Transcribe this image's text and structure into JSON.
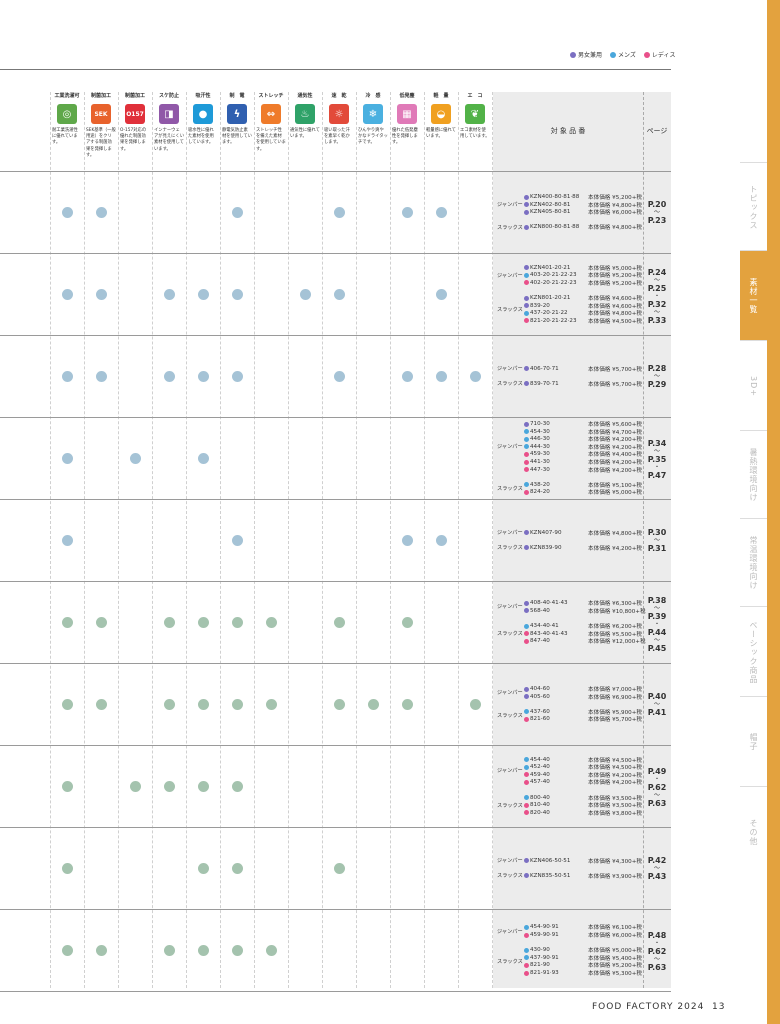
{
  "legend": [
    {
      "label": "男女兼用",
      "color": "#7b6fc2"
    },
    {
      "label": "メンズ",
      "color": "#4aa7dc"
    },
    {
      "label": "レディス",
      "color": "#e9508a"
    }
  ],
  "headers": {
    "target": "対 象 品 番",
    "page": "ページ"
  },
  "features": [
    {
      "title": "工業洗濯可",
      "icon": "drop-shield-icon",
      "color": "#5fa84a",
      "glyph": "◎",
      "desc": "耐工業洗濯性に優れています。"
    },
    {
      "title": "制菌加工",
      "icon": "sek-mark-icon",
      "color": "#e8622c",
      "glyph": "SEK",
      "desc": "SEK基準（一般用途）をクリアする制菌効果を発揮します。"
    },
    {
      "title": "制菌加工",
      "icon": "o157-icon",
      "color": "#e0303a",
      "glyph": "O157",
      "desc": "O-157対応の優れた制菌効果を発揮します。"
    },
    {
      "title": "スケ防止",
      "icon": "see-through-icon",
      "color": "#9058a8",
      "glyph": "◨",
      "desc": "インナーウェアが見えにくい素材を使用しています。"
    },
    {
      "title": "吸汗性",
      "icon": "water-drop-icon",
      "color": "#1e9ad8",
      "glyph": "●",
      "desc": "吸水性に優れた素材を使用しています。"
    },
    {
      "title": "制　電",
      "icon": "static-icon",
      "color": "#3060b0",
      "glyph": "ϟ",
      "desc": "静電気防止素材を使用しています。"
    },
    {
      "title": "ストレッチ",
      "icon": "stretch-icon",
      "color": "#ef7b2a",
      "glyph": "⇔",
      "desc": "ストレッチ性を備えた素材を使用しています。"
    },
    {
      "title": "通気性",
      "icon": "vent-jacket-icon",
      "color": "#2fa268",
      "glyph": "♨",
      "desc": "通気性に優れています。"
    },
    {
      "title": "速　乾",
      "icon": "quick-dry-icon",
      "color": "#e24a3a",
      "glyph": "☼",
      "desc": "吸い取った汗を素早く乾かします。"
    },
    {
      "title": "冷　感",
      "icon": "cool-icon",
      "color": "#4ab0e0",
      "glyph": "❄",
      "desc": "ひんやり爽やかなドライタッチです。"
    },
    {
      "title": "低発塵",
      "icon": "low-lint-icon",
      "color": "#e07ab8",
      "glyph": "▦",
      "desc": "優れた低発塵性を発揮します。"
    },
    {
      "title": "軽　量",
      "icon": "light-weight-icon",
      "color": "#f0a020",
      "glyph": "◒",
      "desc": "軽量感に優れています。"
    },
    {
      "title": "エ　コ",
      "icon": "eco-leaf-icon",
      "color": "#52b248",
      "glyph": "❦",
      "desc": "エコ素材を使用しています。"
    }
  ],
  "rows": [
    {
      "dots": [
        1,
        1,
        0,
        0,
        0,
        1,
        0,
        0,
        1,
        0,
        1,
        1,
        0
      ],
      "dotColor": "blue",
      "pages": [
        "P.20",
        "〜",
        "P.23"
      ],
      "groups": [
        {
          "cat": "ジャンパー",
          "items": [
            {
              "code": "KZN400-80·81·88",
              "price": "本体価格 ¥5,200+税",
              "color": "#7b6fc2"
            },
            {
              "code": "KZN402-80·81",
              "price": "本体価格 ¥4,800+税",
              "color": "#7b6fc2"
            },
            {
              "code": "KZN405-80·81",
              "price": "本体価格 ¥6,000+税",
              "color": "#7b6fc2"
            }
          ]
        },
        {
          "cat": "スラックス",
          "items": [
            {
              "code": "KZN800-80·81·88",
              "price": "本体価格 ¥4,800+税",
              "color": "#7b6fc2"
            }
          ]
        }
      ]
    },
    {
      "dots": [
        1,
        1,
        0,
        1,
        1,
        1,
        0,
        1,
        1,
        0,
        0,
        1,
        0
      ],
      "dotColor": "blue",
      "pages": [
        "P.24",
        "〜",
        "P.25",
        "・",
        "P.32",
        "〜",
        "P.33"
      ],
      "groups": [
        {
          "cat": "ジャンパー",
          "items": [
            {
              "code": "KZN401-20·21",
              "price": "本体価格 ¥5,000+税",
              "color": "#7b6fc2"
            },
            {
              "code": "403-20·21·22·23",
              "price": "本体価格 ¥5,200+税",
              "color": "#4aa7dc"
            },
            {
              "code": "402-20·21·22·23",
              "price": "本体価格 ¥5,200+税",
              "color": "#e9508a"
            }
          ]
        },
        {
          "cat": "スラックス",
          "items": [
            {
              "code": "KZN801-20·21",
              "price": "本体価格 ¥4,600+税",
              "color": "#7b6fc2"
            },
            {
              "code": "839-20",
              "price": "本体価格 ¥4,600+税",
              "color": "#7b6fc2"
            },
            {
              "code": "437-20·21·22",
              "price": "本体価格 ¥4,800+税",
              "color": "#4aa7dc"
            },
            {
              "code": "821-20·21·22·23",
              "price": "本体価格 ¥4,500+税",
              "color": "#e9508a"
            }
          ]
        }
      ]
    },
    {
      "dots": [
        1,
        1,
        0,
        1,
        1,
        1,
        0,
        0,
        1,
        0,
        1,
        1,
        1
      ],
      "dotColor": "blue",
      "pages": [
        "P.28",
        "〜",
        "P.29"
      ],
      "groups": [
        {
          "cat": "ジャンパー",
          "items": [
            {
              "code": "406-70·71",
              "price": "本体価格 ¥5,700+税",
              "color": "#7b6fc2"
            }
          ]
        },
        {
          "cat": "スラックス",
          "items": [
            {
              "code": "839-70·71",
              "price": "本体価格 ¥5,700+税",
              "color": "#7b6fc2"
            }
          ]
        }
      ]
    },
    {
      "dots": [
        1,
        0,
        1,
        0,
        1,
        0,
        0,
        0,
        0,
        0,
        0,
        0,
        0
      ],
      "dotColor": "blue",
      "pages": [
        "P.34",
        "〜",
        "P.35",
        "・",
        "P.47"
      ],
      "groups": [
        {
          "cat": "ジャンパー",
          "items": [
            {
              "code": "710-30",
              "price": "本体価格 ¥5,600+税",
              "color": "#7b6fc2"
            },
            {
              "code": "454-30",
              "price": "本体価格 ¥4,700+税",
              "color": "#4aa7dc"
            },
            {
              "code": "446-30",
              "price": "本体価格 ¥4,200+税",
              "color": "#4aa7dc"
            },
            {
              "code": "444-30",
              "price": "本体価格 ¥4,200+税",
              "color": "#4aa7dc"
            },
            {
              "code": "459-30",
              "price": "本体価格 ¥4,400+税",
              "color": "#e9508a"
            },
            {
              "code": "441-30",
              "price": "本体価格 ¥4,200+税",
              "color": "#e9508a"
            },
            {
              "code": "447-30",
              "price": "本体価格 ¥4,200+税",
              "color": "#e9508a"
            }
          ]
        },
        {
          "cat": "スラックス",
          "items": [
            {
              "code": "438-20",
              "price": "本体価格 ¥5,100+税",
              "color": "#4aa7dc"
            },
            {
              "code": "824-20",
              "price": "本体価格 ¥5,000+税",
              "color": "#e9508a"
            }
          ]
        }
      ]
    },
    {
      "dots": [
        1,
        0,
        0,
        0,
        0,
        1,
        0,
        0,
        0,
        0,
        1,
        1,
        0
      ],
      "dotColor": "blue",
      "pages": [
        "P.30",
        "〜",
        "P.31"
      ],
      "groups": [
        {
          "cat": "ジャンパー",
          "items": [
            {
              "code": "KZN407-90",
              "price": "本体価格 ¥4,800+税",
              "color": "#7b6fc2"
            }
          ]
        },
        {
          "cat": "スラックス",
          "items": [
            {
              "code": "KZN839-90",
              "price": "本体価格 ¥4,200+税",
              "color": "#7b6fc2"
            }
          ]
        }
      ]
    },
    {
      "dots": [
        1,
        1,
        0,
        1,
        1,
        1,
        1,
        0,
        1,
        0,
        1,
        0,
        0
      ],
      "dotColor": "green",
      "pages": [
        "P.38",
        "〜",
        "P.39",
        "・",
        "P.44",
        "〜",
        "P.45"
      ],
      "groups": [
        {
          "cat": "ジャンパー",
          "items": [
            {
              "code": "408-40·41·43",
              "price": "本体価格 ¥6,300+税",
              "color": "#7b6fc2"
            },
            {
              "code": "568-40",
              "price": "本体価格 ¥10,800+税",
              "color": "#7b6fc2"
            }
          ]
        },
        {
          "cat": "スラックス",
          "items": [
            {
              "code": "434-40·41",
              "price": "本体価格 ¥6,200+税",
              "color": "#4aa7dc"
            },
            {
              "code": "843-40·41·43",
              "price": "本体価格 ¥5,500+税",
              "color": "#e9508a"
            },
            {
              "code": "847-40",
              "price": "本体価格 ¥12,000+税",
              "color": "#e9508a"
            }
          ]
        }
      ]
    },
    {
      "dots": [
        1,
        1,
        0,
        1,
        1,
        1,
        1,
        0,
        1,
        1,
        1,
        0,
        1
      ],
      "dotColor": "green",
      "pages": [
        "P.40",
        "〜",
        "P.41"
      ],
      "groups": [
        {
          "cat": "ジャンパー",
          "items": [
            {
              "code": "404-60",
              "price": "本体価格 ¥7,000+税",
              "color": "#7b6fc2"
            },
            {
              "code": "405-60",
              "price": "本体価格 ¥6,900+税",
              "color": "#7b6fc2"
            }
          ]
        },
        {
          "cat": "スラックス",
          "items": [
            {
              "code": "437-60",
              "price": "本体価格 ¥5,900+税",
              "color": "#4aa7dc"
            },
            {
              "code": "821-60",
              "price": "本体価格 ¥5,700+税",
              "color": "#e9508a"
            }
          ]
        }
      ]
    },
    {
      "dots": [
        1,
        0,
        1,
        1,
        1,
        1,
        0,
        0,
        0,
        0,
        0,
        0,
        0
      ],
      "dotColor": "green",
      "pages": [
        "P.49",
        "・",
        "P.62",
        "〜",
        "P.63"
      ],
      "groups": [
        {
          "cat": "ジャンパー",
          "items": [
            {
              "code": "454-40",
              "price": "本体価格 ¥4,500+税",
              "color": "#4aa7dc"
            },
            {
              "code": "452-40",
              "price": "本体価格 ¥4,500+税",
              "color": "#4aa7dc"
            },
            {
              "code": "459-40",
              "price": "本体価格 ¥4,200+税",
              "color": "#e9508a"
            },
            {
              "code": "457-40",
              "price": "本体価格 ¥4,200+税",
              "color": "#e9508a"
            }
          ]
        },
        {
          "cat": "スラックス",
          "items": [
            {
              "code": "800-40",
              "price": "本体価格 ¥3,500+税",
              "color": "#4aa7dc"
            },
            {
              "code": "810-40",
              "price": "本体価格 ¥3,500+税",
              "color": "#e9508a"
            },
            {
              "code": "820-40",
              "price": "本体価格 ¥3,800+税",
              "color": "#e9508a"
            }
          ]
        }
      ]
    },
    {
      "dots": [
        1,
        0,
        0,
        0,
        1,
        1,
        0,
        0,
        1,
        0,
        0,
        0,
        0
      ],
      "dotColor": "green",
      "pages": [
        "P.42",
        "〜",
        "P.43"
      ],
      "groups": [
        {
          "cat": "ジャンパー",
          "items": [
            {
              "code": "KZN406-50·51",
              "price": "本体価格 ¥4,300+税",
              "color": "#7b6fc2"
            }
          ]
        },
        {
          "cat": "スラックス",
          "items": [
            {
              "code": "KZN835-50·51",
              "price": "本体価格 ¥3,900+税",
              "color": "#7b6fc2"
            }
          ]
        }
      ]
    },
    {
      "dots": [
        1,
        1,
        0,
        1,
        1,
        1,
        1,
        0,
        0,
        0,
        0,
        0,
        0
      ],
      "dotColor": "green",
      "pages": [
        "P.48",
        "・",
        "P.62",
        "〜",
        "P.63"
      ],
      "groups": [
        {
          "cat": "ジャンパー",
          "items": [
            {
              "code": "454-90·91",
              "price": "本体価格 ¥6,100+税",
              "color": "#4aa7dc"
            },
            {
              "code": "459-90·91",
              "price": "本体価格 ¥6,000+税",
              "color": "#e9508a"
            }
          ]
        },
        {
          "cat": "スラックス",
          "items": [
            {
              "code": "430-90",
              "price": "本体価格 ¥5,000+税",
              "color": "#4aa7dc"
            },
            {
              "code": "437-90·91",
              "price": "本体価格 ¥5,400+税",
              "color": "#4aa7dc"
            },
            {
              "code": "821-90",
              "price": "本体価格 ¥5,200+税",
              "color": "#e9508a"
            },
            {
              "code": "821-91·93",
              "price": "本体価格 ¥5,300+税",
              "color": "#e9508a"
            }
          ]
        }
      ]
    }
  ],
  "sidebar": [
    {
      "label": "トピックス",
      "active": false
    },
    {
      "label": "素材一覧",
      "active": true
    },
    {
      "label": "3D+",
      "active": false
    },
    {
      "label": "暑熱環境向け",
      "active": false
    },
    {
      "label": "常温環境向け",
      "active": false
    },
    {
      "label": "ベーシック商品",
      "active": false
    },
    {
      "label": "帽子",
      "active": false
    },
    {
      "label": "その他",
      "active": false
    }
  ],
  "footer": {
    "brand": "FOOD FACTORY 2024",
    "page": "13"
  }
}
